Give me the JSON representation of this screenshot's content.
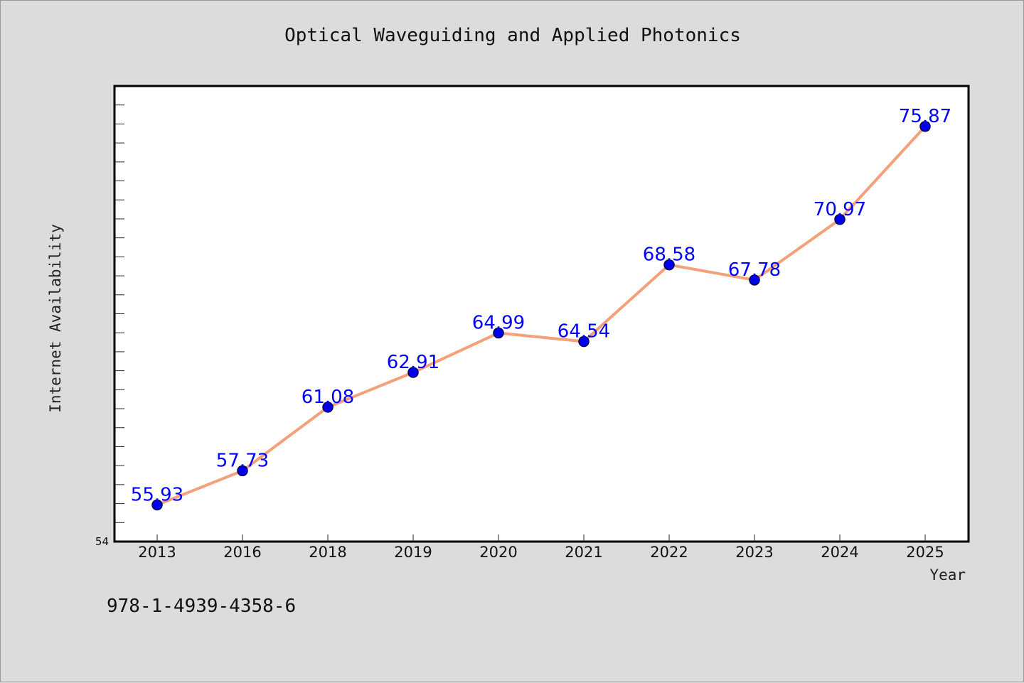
{
  "title": "Optical Waveguiding and Applied Photonics",
  "isbn": "978-1-4939-4358-6",
  "colors": {
    "background": "#dcdcdc",
    "plot_background": "#ffffff",
    "line": "#f4a07a",
    "marker": "#0000ee",
    "data_label": "#0000ff"
  },
  "chart_data": {
    "type": "line",
    "xlabel": "Year",
    "ylabel": "Internet Availability",
    "categories": [
      "2013",
      "2016",
      "2018",
      "2019",
      "2020",
      "2021",
      "2022",
      "2023",
      "2024",
      "2025"
    ],
    "values": [
      55.93,
      57.73,
      61.08,
      62.91,
      64.99,
      64.54,
      68.58,
      67.78,
      70.97,
      75.87
    ],
    "data_labels": [
      "55.93",
      "57.73",
      "61.08",
      "62.91",
      "64.99",
      "64.54",
      "68.58",
      "67.78",
      "70.97",
      "75.87"
    ],
    "ylim": [
      54,
      78
    ],
    "y_tick_labels": [
      "54"
    ],
    "y_minor_tick_step": 1,
    "grid": false,
    "legend": "none"
  }
}
